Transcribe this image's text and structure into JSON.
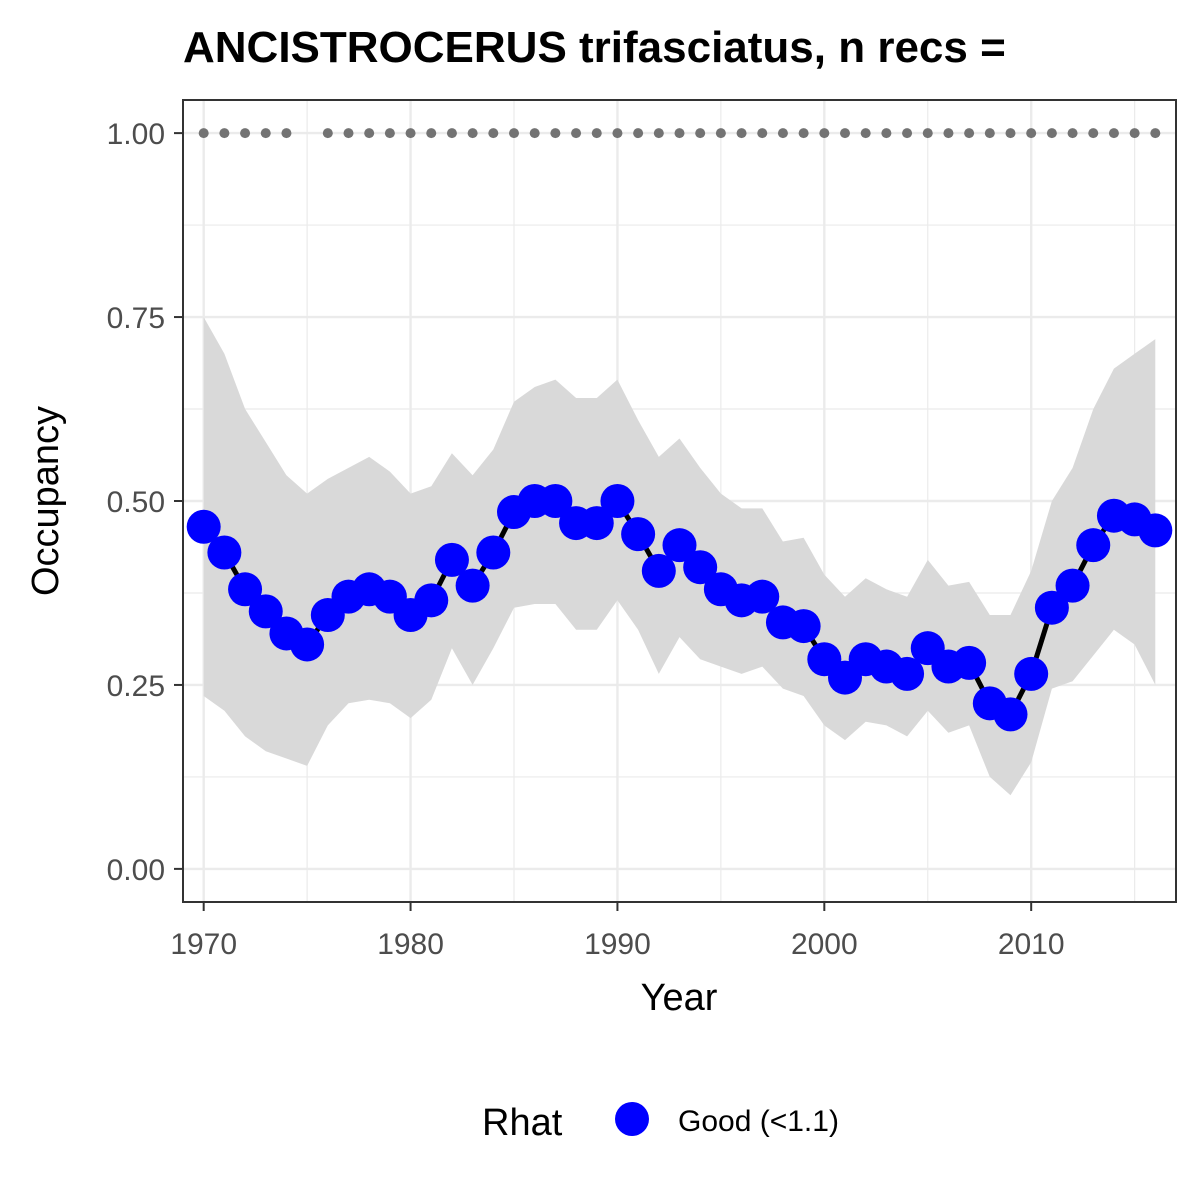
{
  "chart_data": {
    "type": "line",
    "title": "ANCISTROCERUS trifasciatus, n recs = ",
    "xlabel": "Year",
    "ylabel": "Occupancy",
    "xlim": [
      1969,
      2017
    ],
    "ylim": [
      -0.045,
      1.045
    ],
    "x_ticks": [
      1970,
      1980,
      1990,
      2000,
      2010
    ],
    "x_tick_labels": [
      "1970",
      "1980",
      "1990",
      "2000",
      "2010"
    ],
    "y_ticks": [
      0,
      0.25,
      0.5,
      0.75,
      1.0
    ],
    "y_tick_labels": [
      "0.00",
      "0.25",
      "0.50",
      "0.75",
      "1.00"
    ],
    "grid": true,
    "series": [
      {
        "name": "Good (<1.1)",
        "x": [
          1970,
          1971,
          1972,
          1973,
          1974,
          1975,
          1976,
          1977,
          1978,
          1979,
          1980,
          1981,
          1982,
          1983,
          1984,
          1985,
          1986,
          1987,
          1988,
          1989,
          1990,
          1991,
          1992,
          1993,
          1994,
          1995,
          1996,
          1997,
          1998,
          1999,
          2000,
          2001,
          2002,
          2003,
          2004,
          2005,
          2006,
          2007,
          2008,
          2009,
          2010,
          2011,
          2012,
          2013,
          2014,
          2015,
          2016
        ],
        "y": [
          0.465,
          0.43,
          0.38,
          0.35,
          0.32,
          0.305,
          0.345,
          0.37,
          0.38,
          0.37,
          0.345,
          0.365,
          0.42,
          0.385,
          0.43,
          0.485,
          0.5,
          0.5,
          0.47,
          0.47,
          0.5,
          0.455,
          0.405,
          0.44,
          0.41,
          0.38,
          0.365,
          0.37,
          0.335,
          0.33,
          0.285,
          0.26,
          0.285,
          0.275,
          0.265,
          0.3,
          0.275,
          0.28,
          0.225,
          0.21,
          0.265,
          0.355,
          0.385,
          0.44,
          0.48,
          0.475,
          0.46
        ],
        "lower": [
          0.235,
          0.215,
          0.18,
          0.16,
          0.15,
          0.14,
          0.195,
          0.225,
          0.23,
          0.225,
          0.205,
          0.23,
          0.3,
          0.25,
          0.3,
          0.355,
          0.36,
          0.36,
          0.325,
          0.325,
          0.365,
          0.325,
          0.265,
          0.315,
          0.285,
          0.275,
          0.265,
          0.275,
          0.245,
          0.235,
          0.195,
          0.175,
          0.2,
          0.195,
          0.18,
          0.215,
          0.185,
          0.195,
          0.125,
          0.1,
          0.145,
          0.245,
          0.255,
          0.29,
          0.325,
          0.305,
          0.25
        ],
        "upper": [
          0.75,
          0.7,
          0.625,
          0.58,
          0.535,
          0.51,
          0.53,
          0.545,
          0.56,
          0.54,
          0.51,
          0.52,
          0.565,
          0.535,
          0.57,
          0.635,
          0.655,
          0.665,
          0.64,
          0.64,
          0.665,
          0.61,
          0.56,
          0.585,
          0.545,
          0.51,
          0.49,
          0.49,
          0.445,
          0.45,
          0.4,
          0.37,
          0.395,
          0.38,
          0.37,
          0.42,
          0.385,
          0.39,
          0.345,
          0.345,
          0.405,
          0.5,
          0.545,
          0.625,
          0.68,
          0.7,
          0.72
        ]
      }
    ],
    "records_x": [
      1970,
      1971,
      1972,
      1973,
      1974,
      1976,
      1977,
      1978,
      1979,
      1980,
      1981,
      1982,
      1983,
      1984,
      1985,
      1986,
      1987,
      1988,
      1989,
      1990,
      1991,
      1992,
      1993,
      1994,
      1995,
      1996,
      1997,
      1998,
      1999,
      2000,
      2001,
      2002,
      2003,
      2004,
      2005,
      2006,
      2007,
      2008,
      2009,
      2010,
      2011,
      2012,
      2013,
      2014,
      2015,
      2016
    ],
    "records_y": 1.0,
    "legend": {
      "title": "Rhat",
      "entries": [
        "Good (<1.1)"
      ],
      "position": "bottom"
    },
    "colors": {
      "point": "#0000ff",
      "line": "#000000",
      "ribbon": "#d9d9d9",
      "records": "#737373",
      "grid": "#ebebeb",
      "panel_border": "#333333"
    }
  }
}
